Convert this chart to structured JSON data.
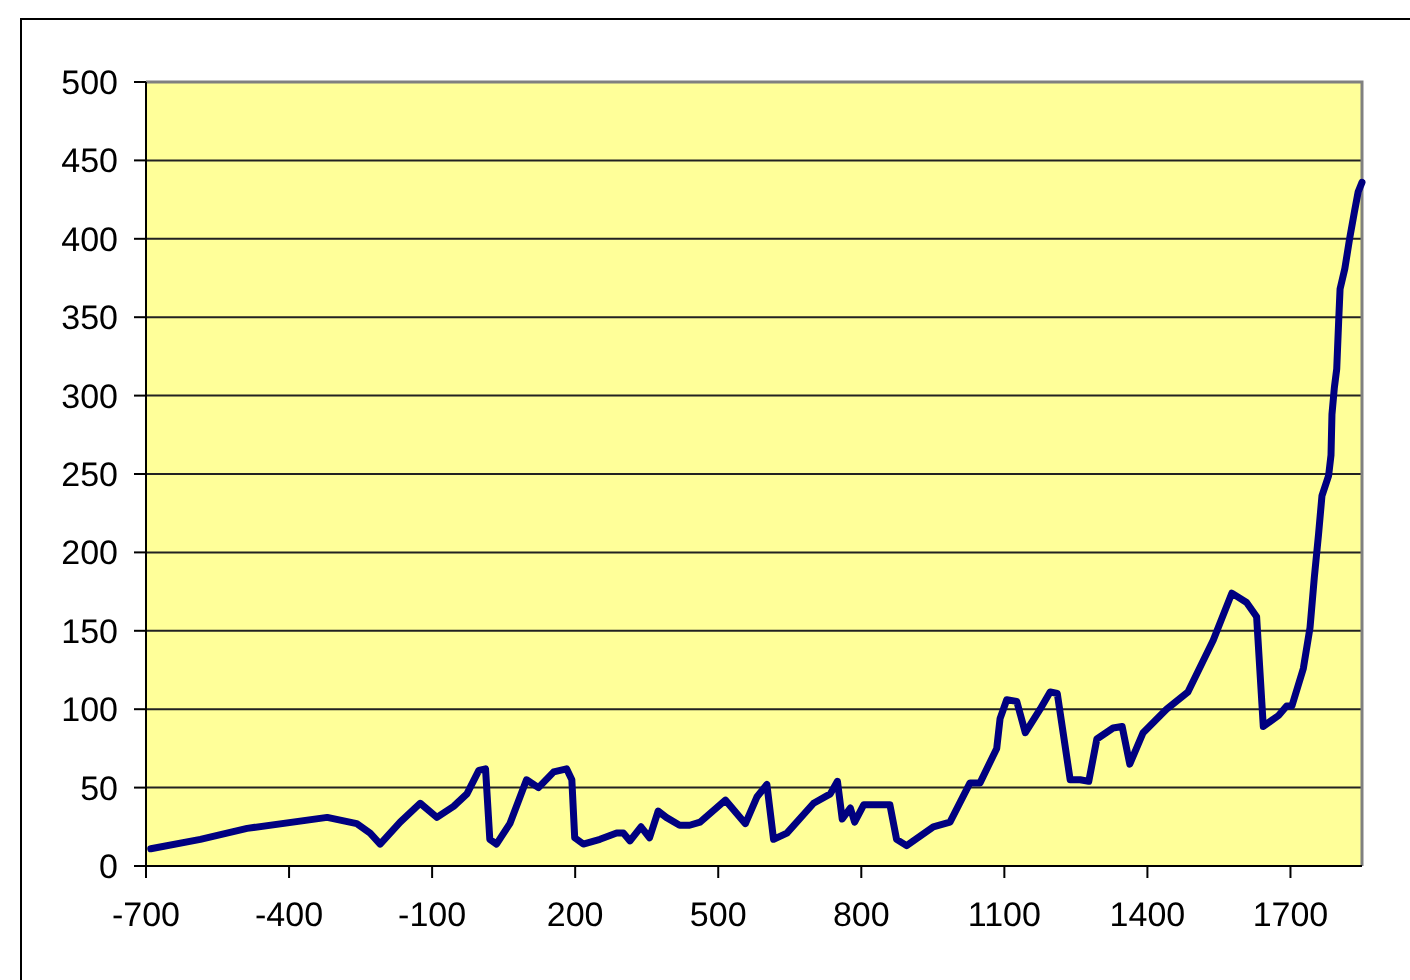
{
  "chart_data": {
    "type": "line",
    "x": [
      -690,
      -586,
      -488,
      -320,
      -258,
      -230,
      -209,
      -167,
      -125,
      -90,
      -55,
      -27,
      -2,
      12,
      21,
      35,
      63,
      98,
      123,
      155,
      182,
      193,
      199,
      217,
      252,
      287,
      301,
      315,
      338,
      356,
      374,
      391,
      419,
      440,
      462,
      515,
      557,
      581,
      602,
      616,
      644,
      700,
      735,
      750,
      760,
      777,
      786,
      805,
      860,
      874,
      895,
      951,
      986,
      1028,
      1049,
      1084,
      1091,
      1105,
      1126,
      1144,
      1175,
      1196,
      1211,
      1238,
      1259,
      1277,
      1294,
      1328,
      1347,
      1363,
      1391,
      1440,
      1485,
      1538,
      1577,
      1608,
      1629,
      1643,
      1675,
      1692,
      1703,
      1727,
      1741,
      1750,
      1759,
      1766,
      1780,
      1785,
      1787,
      1792,
      1797,
      1801,
      1804,
      1814,
      1824,
      1834,
      1842,
      1850
    ],
    "series": [
      {
        "color": "#000080",
        "values": [
          11,
          17,
          24,
          31,
          27,
          21,
          14,
          28,
          40,
          31,
          38,
          46,
          61,
          62,
          17,
          14,
          27,
          55,
          50,
          60,
          62,
          55,
          18,
          14,
          17,
          21,
          21,
          16,
          25,
          18,
          35,
          31,
          26,
          26,
          28,
          42,
          27,
          44,
          52,
          17,
          21,
          40,
          46,
          54,
          30,
          37,
          28,
          39,
          39,
          17,
          13,
          25,
          28,
          53,
          53,
          75,
          94,
          106,
          105,
          85,
          100,
          111,
          110,
          55,
          55,
          54,
          81,
          88,
          89,
          65,
          85,
          100,
          111,
          144,
          174,
          168,
          159,
          89,
          96,
          102,
          102,
          126,
          152,
          184,
          212,
          236,
          249,
          262,
          288,
          305,
          317,
          347,
          368,
          381,
          400,
          417,
          430,
          436
        ]
      }
    ],
    "xlim": [
      -700,
      1850
    ],
    "ylim": [
      0,
      500
    ],
    "xticks": [
      -700,
      -400,
      -100,
      200,
      500,
      800,
      1100,
      1400,
      1700
    ],
    "yticks": [
      0,
      50,
      100,
      150,
      200,
      250,
      300,
      350,
      400,
      450,
      500
    ],
    "grid": "y",
    "line_style": "solid"
  }
}
